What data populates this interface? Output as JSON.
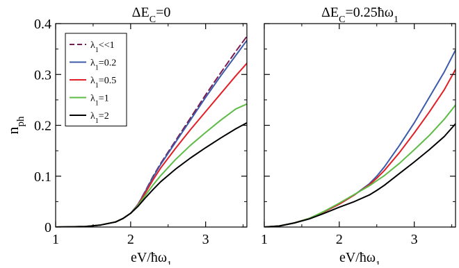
{
  "chart_data": [
    {
      "type": "line",
      "title": "ΔE_C=0",
      "title_parts": {
        "a": "ΔE",
        "b": "C",
        "c": "=0"
      },
      "xlabel": "eV/ħω_1",
      "xlabel_parts": {
        "a": "eV/ħω",
        "b": "1"
      },
      "ylabel": "n_ph",
      "ylabel_parts": {
        "a": "n",
        "b": "ph"
      },
      "xlim": [
        1,
        3.55
      ],
      "ylim": [
        0,
        0.4
      ],
      "xticks": [
        "1",
        "2",
        "3"
      ],
      "yticks": [
        "0",
        "0.1",
        "0.2",
        "0.3",
        "0.4"
      ],
      "grid": false,
      "legend_placement": "top-left",
      "series": [
        {
          "name": "λ_1<<1",
          "label_parts": {
            "a": "λ",
            "b": "1",
            "c": "<<1"
          },
          "color": "#7b1a4f",
          "dashed": true,
          "x": [
            1.0,
            1.4,
            1.6,
            1.8,
            1.9,
            2.0,
            2.1,
            2.2,
            2.3,
            2.4,
            2.6,
            2.8,
            3.0,
            3.2,
            3.4,
            3.55
          ],
          "y": [
            0.0,
            0.001,
            0.004,
            0.01,
            0.017,
            0.027,
            0.045,
            0.072,
            0.1,
            0.125,
            0.17,
            0.215,
            0.26,
            0.303,
            0.345,
            0.375
          ]
        },
        {
          "name": "λ_1=0.2",
          "label_parts": {
            "a": "λ",
            "b": "1",
            "c": "=0.2"
          },
          "color": "#3b5ba9",
          "dashed": false,
          "x": [
            1.0,
            1.4,
            1.6,
            1.8,
            1.9,
            2.0,
            2.1,
            2.2,
            2.3,
            2.4,
            2.6,
            2.8,
            3.0,
            3.2,
            3.4,
            3.55
          ],
          "y": [
            0.0,
            0.001,
            0.004,
            0.01,
            0.017,
            0.027,
            0.045,
            0.071,
            0.098,
            0.123,
            0.167,
            0.211,
            0.255,
            0.297,
            0.337,
            0.367
          ]
        },
        {
          "name": "λ_1=0.5",
          "label_parts": {
            "a": "λ",
            "b": "1",
            "c": "=0.5"
          },
          "color": "#e21f26",
          "dashed": false,
          "x": [
            1.0,
            1.4,
            1.6,
            1.8,
            1.9,
            2.0,
            2.1,
            2.2,
            2.3,
            2.4,
            2.6,
            2.8,
            3.0,
            3.2,
            3.4,
            3.55
          ],
          "y": [
            0.0,
            0.001,
            0.004,
            0.01,
            0.017,
            0.027,
            0.044,
            0.068,
            0.093,
            0.116,
            0.155,
            0.192,
            0.227,
            0.262,
            0.297,
            0.322
          ]
        },
        {
          "name": "λ_1=1",
          "label_parts": {
            "a": "λ",
            "b": "1",
            "c": "=1"
          },
          "color": "#5dbb46",
          "dashed": false,
          "x": [
            1.0,
            1.4,
            1.6,
            1.8,
            1.9,
            2.0,
            2.1,
            2.2,
            2.3,
            2.4,
            2.6,
            2.8,
            3.0,
            3.2,
            3.4,
            3.55
          ],
          "y": [
            0.0,
            0.001,
            0.004,
            0.01,
            0.017,
            0.027,
            0.043,
            0.063,
            0.083,
            0.101,
            0.133,
            0.161,
            0.186,
            0.21,
            0.232,
            0.242
          ]
        },
        {
          "name": "λ_1=2",
          "label_parts": {
            "a": "λ",
            "b": "1",
            "c": "=2"
          },
          "color": "#000000",
          "dashed": false,
          "x": [
            1.0,
            1.4,
            1.6,
            1.8,
            1.9,
            2.0,
            2.1,
            2.2,
            2.3,
            2.4,
            2.6,
            2.8,
            3.0,
            3.2,
            3.4,
            3.55
          ],
          "y": [
            0.0,
            0.001,
            0.004,
            0.01,
            0.017,
            0.027,
            0.041,
            0.058,
            0.074,
            0.089,
            0.114,
            0.136,
            0.156,
            0.175,
            0.193,
            0.205
          ]
        }
      ]
    },
    {
      "type": "line",
      "title": "ΔE_C=0.25ħω_1",
      "title_parts": {
        "a": "ΔE",
        "b": "C",
        "c": "=0.25ħω",
        "d": "1"
      },
      "xlabel": "eV/ħω_1",
      "xlabel_parts": {
        "a": "eV/ħω",
        "b": "1"
      },
      "xlim": [
        1,
        3.55
      ],
      "ylim": [
        0,
        0.4
      ],
      "xticks": [
        "1",
        "2",
        "3"
      ],
      "grid": false,
      "series": [
        {
          "name": "λ_1=0.2",
          "color": "#3b5ba9",
          "dashed": false,
          "x": [
            1.0,
            1.2,
            1.4,
            1.6,
            1.8,
            2.0,
            2.2,
            2.4,
            2.5,
            2.6,
            2.8,
            3.0,
            3.2,
            3.4,
            3.55
          ],
          "y": [
            0.0,
            0.002,
            0.008,
            0.017,
            0.03,
            0.045,
            0.063,
            0.085,
            0.1,
            0.118,
            0.16,
            0.205,
            0.255,
            0.305,
            0.348
          ]
        },
        {
          "name": "λ_1=0.5",
          "color": "#e21f26",
          "dashed": false,
          "x": [
            1.0,
            1.2,
            1.4,
            1.6,
            1.8,
            2.0,
            2.2,
            2.4,
            2.5,
            2.6,
            2.8,
            3.0,
            3.2,
            3.4,
            3.55
          ],
          "y": [
            0.0,
            0.002,
            0.008,
            0.017,
            0.03,
            0.045,
            0.063,
            0.083,
            0.096,
            0.111,
            0.146,
            0.185,
            0.226,
            0.27,
            0.31
          ]
        },
        {
          "name": "λ_1=1",
          "color": "#5dbb46",
          "dashed": false,
          "x": [
            1.0,
            1.2,
            1.4,
            1.6,
            1.8,
            2.0,
            2.2,
            2.4,
            2.5,
            2.6,
            2.8,
            3.0,
            3.2,
            3.4,
            3.55
          ],
          "y": [
            0.0,
            0.002,
            0.008,
            0.017,
            0.031,
            0.047,
            0.064,
            0.081,
            0.091,
            0.101,
            0.125,
            0.152,
            0.18,
            0.212,
            0.24
          ]
        },
        {
          "name": "λ_1=2",
          "color": "#000000",
          "dashed": false,
          "x": [
            1.0,
            1.2,
            1.4,
            1.6,
            1.8,
            2.0,
            2.2,
            2.4,
            2.5,
            2.6,
            2.8,
            3.0,
            3.2,
            3.4,
            3.55
          ],
          "y": [
            0.0,
            0.002,
            0.008,
            0.016,
            0.027,
            0.039,
            0.05,
            0.063,
            0.072,
            0.082,
            0.105,
            0.128,
            0.152,
            0.178,
            0.203
          ]
        }
      ]
    }
  ]
}
